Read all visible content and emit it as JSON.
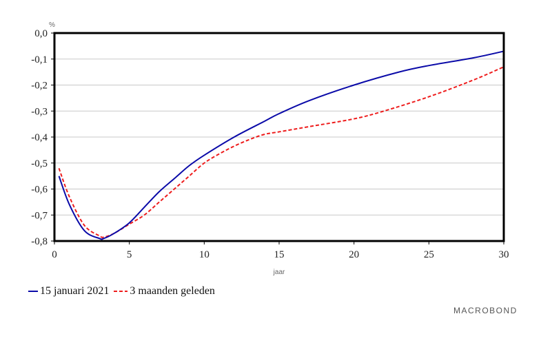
{
  "chart_data": {
    "type": "line",
    "ylabel": "%",
    "xlabel": "jaar",
    "xlim": [
      0,
      30
    ],
    "ylim": [
      -0.8,
      0.0
    ],
    "x_ticks": [
      "0",
      "5",
      "10",
      "15",
      "20",
      "25",
      "30"
    ],
    "y_ticks": [
      "0,0",
      "-0,1",
      "-0,2",
      "-0,3",
      "-0,4",
      "-0,5",
      "-0,6",
      "-0,7",
      "-0,8"
    ],
    "grid": "horizontal",
    "legend_position": "bottom-left",
    "series": [
      {
        "name": "15 januari 2021",
        "color": "#0a0aa8",
        "style": "solid",
        "x": [
          0.3,
          1,
          2,
          3,
          3.3,
          4,
          5,
          6,
          7,
          8,
          9,
          10,
          12,
          14,
          15,
          17,
          20,
          23,
          25,
          28,
          30
        ],
        "y": [
          -0.55,
          -0.66,
          -0.76,
          -0.79,
          -0.79,
          -0.77,
          -0.73,
          -0.67,
          -0.61,
          -0.56,
          -0.51,
          -0.47,
          -0.4,
          -0.34,
          -0.31,
          -0.26,
          -0.2,
          -0.15,
          -0.125,
          -0.095,
          -0.07
        ]
      },
      {
        "name": "3 maanden geleden",
        "color": "#ee1c1c",
        "style": "dashed",
        "x": [
          0.3,
          1,
          2,
          3,
          3.3,
          4,
          5,
          6,
          7,
          8,
          9,
          10,
          11,
          12,
          13,
          14,
          15,
          17,
          20,
          22,
          25,
          28,
          30
        ],
        "y": [
          -0.52,
          -0.63,
          -0.74,
          -0.78,
          -0.785,
          -0.77,
          -0.735,
          -0.7,
          -0.65,
          -0.6,
          -0.55,
          -0.5,
          -0.465,
          -0.435,
          -0.41,
          -0.39,
          -0.38,
          -0.36,
          -0.33,
          -0.3,
          -0.245,
          -0.18,
          -0.13
        ]
      }
    ]
  },
  "branding": "MACROBOND"
}
